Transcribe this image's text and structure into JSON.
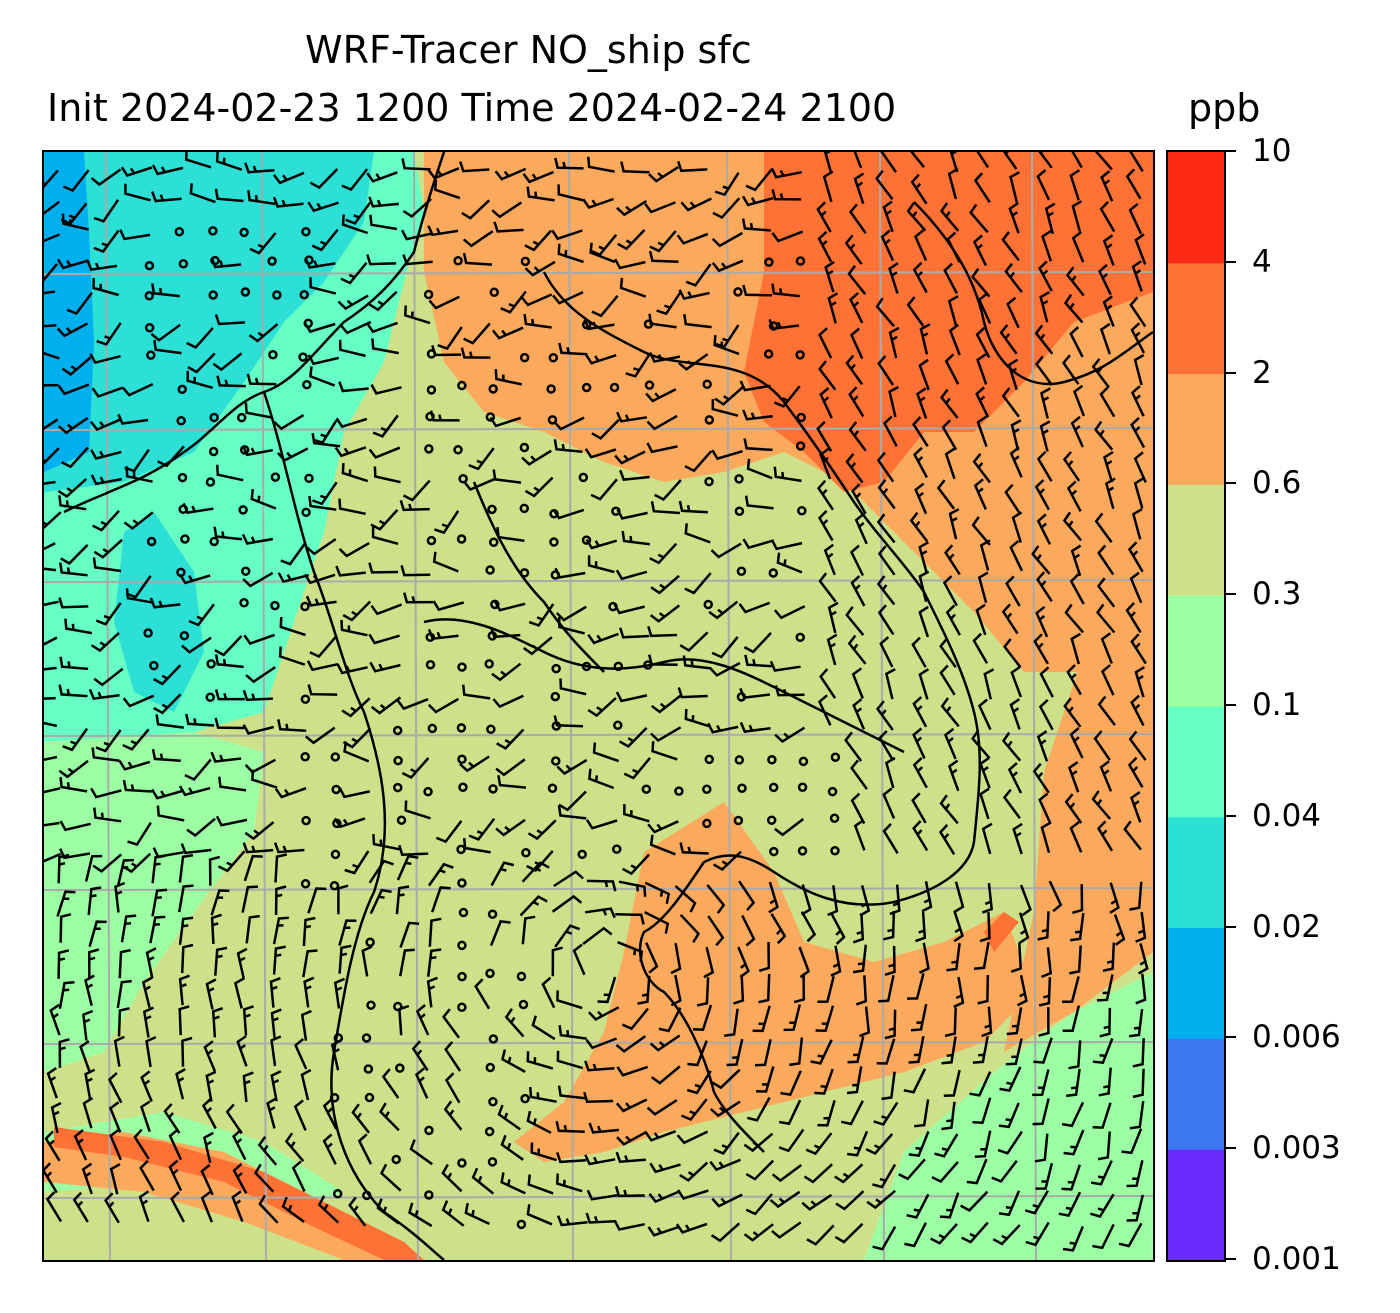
{
  "title": {
    "line1": "WRF-Tracer NO_ship sfc",
    "line2": "Init 2024-02-23 1200 Time 2024-02-24 2100",
    "unit": "ppb"
  },
  "colorbar": {
    "levels": [
      "0.001",
      "0.003",
      "0.006",
      "0.02",
      "0.04",
      "0.1",
      "0.3",
      "0.6",
      "2",
      "4",
      "10"
    ],
    "colors": [
      "#6a2bff",
      "#3a78f2",
      "#00b0ee",
      "#2de0d6",
      "#66ffc4",
      "#9cffa4",
      "#cde08a",
      "#fba95c",
      "#ff7235",
      "#ff2a12"
    ]
  },
  "map": {
    "fields": {
      "low_northwest": "#2de0d6",
      "very_low_edge": "#00b0ee",
      "cyan_green": "#66ffc4",
      "light_green": "#9cffa4",
      "olive": "#cde08a",
      "orange": "#fba95c",
      "dark_orange": "#ff7235"
    },
    "gridline_color": "#aaaaaa",
    "coastline_color": "#000000",
    "wind_barb_color": "#000000"
  }
}
